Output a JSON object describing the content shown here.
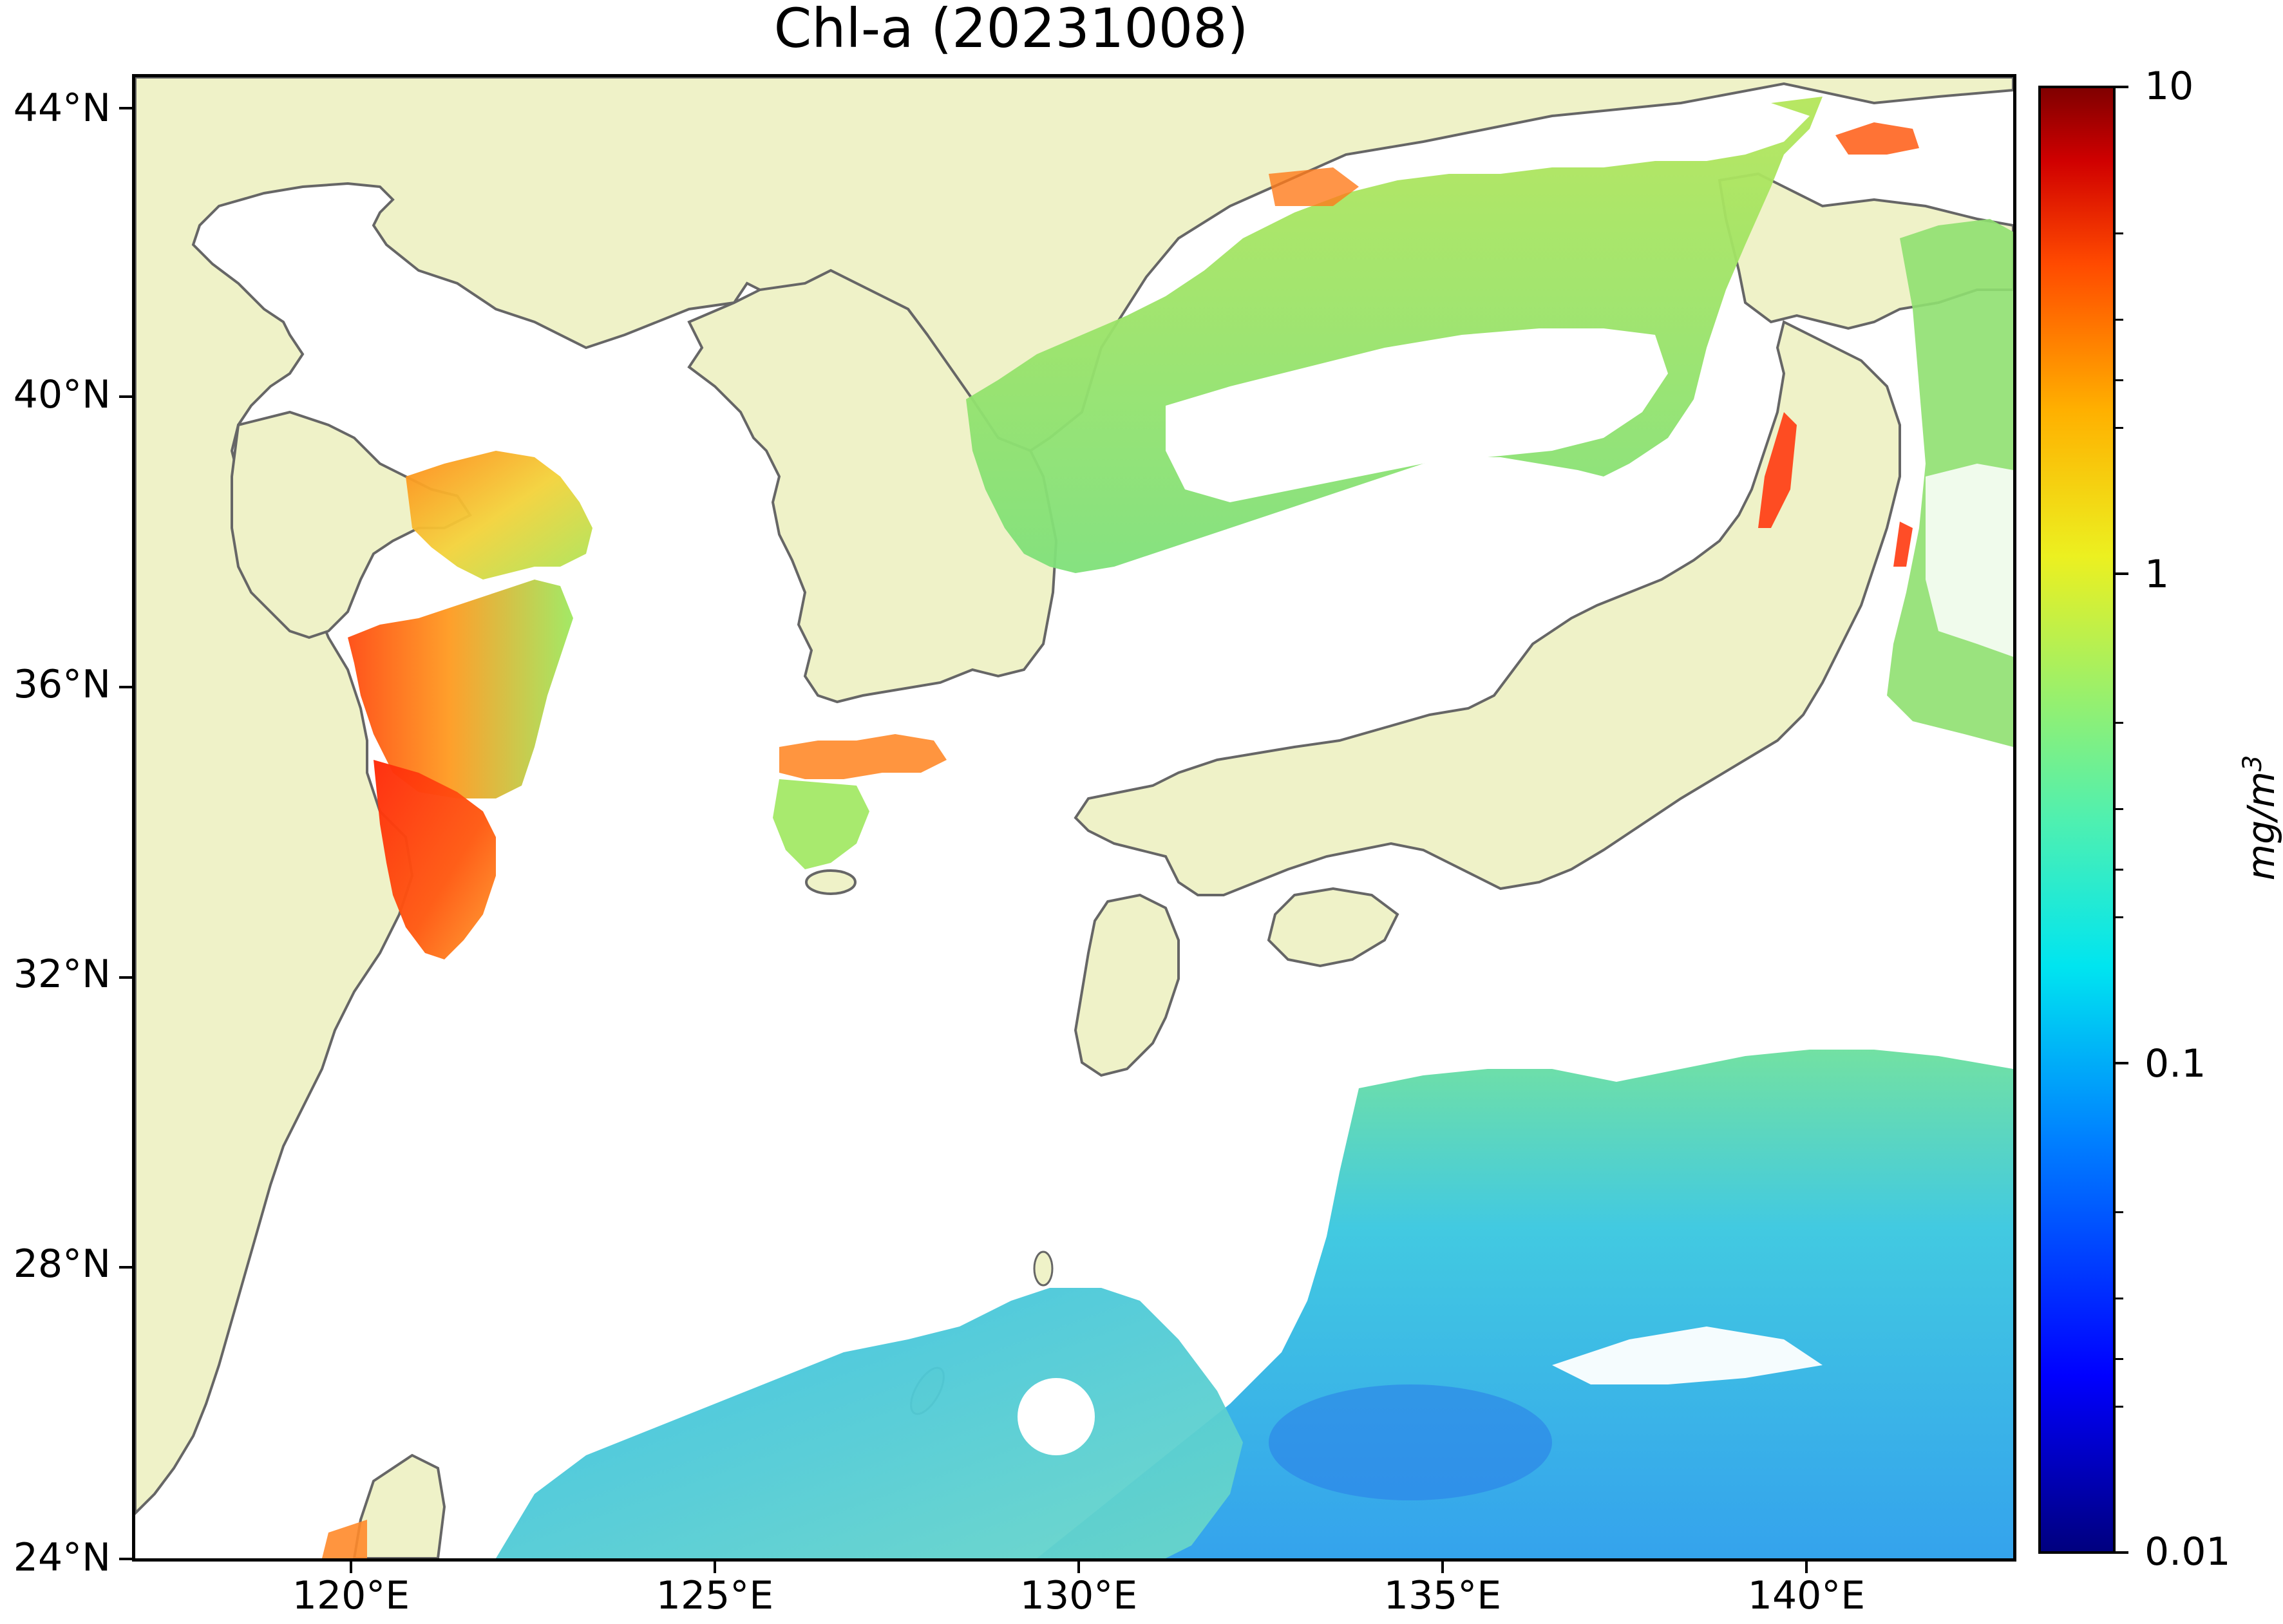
{
  "title": "Chl-a (20231008)",
  "axes": {
    "lat_ticks": [
      "44°N",
      "40°N",
      "36°N",
      "32°N",
      "28°N",
      "24°N"
    ],
    "lon_ticks": [
      "120°E",
      "125°E",
      "130°E",
      "135°E",
      "140°E"
    ]
  },
  "colorbar": {
    "ticks": [
      "10",
      "1",
      "0.1",
      "0.01"
    ],
    "unit_base": "mg/m",
    "unit_exp": "3",
    "scale": "log",
    "range": [
      0.01,
      10
    ],
    "colormap": "jet"
  },
  "map": {
    "region": "East China Sea / Sea of Japan",
    "extent_lon": [
      116.7,
      143.1
    ],
    "extent_lat": [
      24,
      44.6
    ],
    "colors": {
      "land": "#eff2c8",
      "coast": "#666666",
      "no_data": "#ffffff"
    }
  }
}
